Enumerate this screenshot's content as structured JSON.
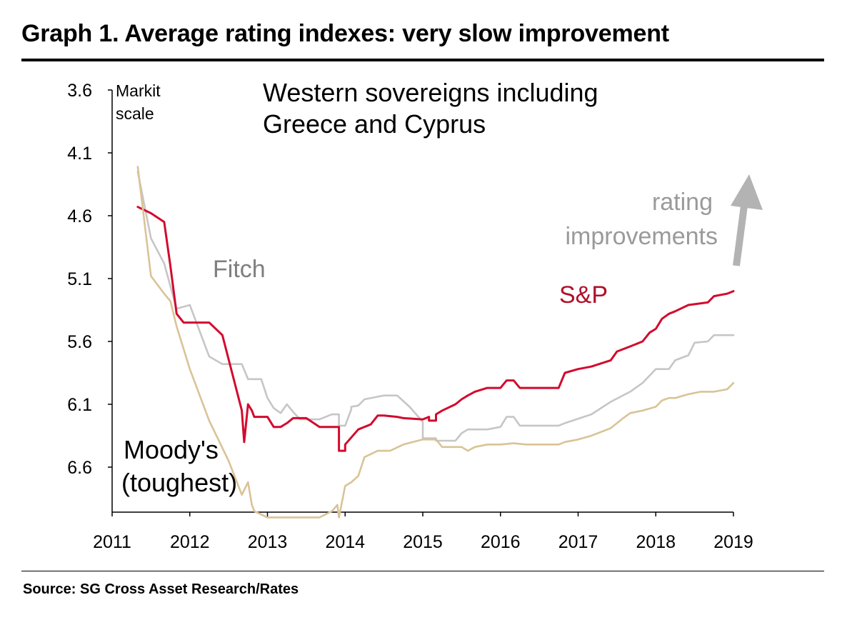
{
  "title": "Graph 1. Average rating indexes: very slow improvement",
  "source": "Source: SG Cross Asset Research/Rates",
  "chart_data": {
    "type": "line",
    "subtitle_lines": [
      "Western sovereigns including",
      "Greece and Cyprus"
    ],
    "ylabel_lines": [
      "Markit",
      "scale"
    ],
    "xlabel": "",
    "xlim": [
      2011,
      2019
    ],
    "ylim": [
      3.6,
      6.95
    ],
    "y_inverted": true,
    "x_ticks": [
      2011,
      2012,
      2013,
      2014,
      2015,
      2016,
      2017,
      2018,
      2019
    ],
    "y_ticks": [
      3.6,
      4.1,
      4.6,
      5.1,
      5.6,
      6.1,
      6.6
    ],
    "y_tick_labels": [
      "3.6",
      "4.1",
      "4.6",
      "5.1",
      "5.6",
      "6.1",
      "6.6"
    ],
    "annotations": {
      "fitch_label": "Fitch",
      "sp_label": "S&P",
      "moodys_lines": [
        "Moody's",
        "(toughest)"
      ],
      "arrow_text_lines": [
        "rating",
        "improvements"
      ]
    },
    "colors": {
      "fitch": "#c6c6c6",
      "sp": "#d20a2e",
      "moodys": "#d9c396",
      "arrow": "#b3b3b3",
      "fitch_label": "#7f7f7f",
      "sp_label": "#b0102a"
    },
    "series": [
      {
        "name": "Fitch",
        "color": "#c6c6c6",
        "points": [
          [
            2011.33,
            4.25
          ],
          [
            2011.5,
            4.78
          ],
          [
            2011.67,
            4.98
          ],
          [
            2011.83,
            5.34
          ],
          [
            2012.0,
            5.31
          ],
          [
            2012.25,
            5.72
          ],
          [
            2012.42,
            5.78
          ],
          [
            2012.67,
            5.78
          ],
          [
            2012.75,
            5.9
          ],
          [
            2012.92,
            5.9
          ],
          [
            2013.0,
            6.05
          ],
          [
            2013.08,
            6.13
          ],
          [
            2013.17,
            6.17
          ],
          [
            2013.25,
            6.1
          ],
          [
            2013.33,
            6.16
          ],
          [
            2013.42,
            6.22
          ],
          [
            2013.67,
            6.22
          ],
          [
            2013.83,
            6.18
          ],
          [
            2013.92,
            6.18
          ],
          [
            2013.92,
            6.27
          ],
          [
            2014.0,
            6.27
          ],
          [
            2014.08,
            6.14
          ],
          [
            2014.08,
            6.12
          ],
          [
            2014.17,
            6.11
          ],
          [
            2014.25,
            6.06
          ],
          [
            2014.42,
            6.04
          ],
          [
            2014.5,
            6.03
          ],
          [
            2014.67,
            6.03
          ],
          [
            2014.83,
            6.12
          ],
          [
            2015.0,
            6.24
          ],
          [
            2015.0,
            6.37
          ],
          [
            2015.17,
            6.37
          ],
          [
            2015.17,
            6.39
          ],
          [
            2015.42,
            6.39
          ],
          [
            2015.5,
            6.33
          ],
          [
            2015.58,
            6.3
          ],
          [
            2015.83,
            6.3
          ],
          [
            2016.0,
            6.28
          ],
          [
            2016.08,
            6.2
          ],
          [
            2016.17,
            6.2
          ],
          [
            2016.25,
            6.27
          ],
          [
            2016.75,
            6.27
          ],
          [
            2016.83,
            6.25
          ],
          [
            2017.17,
            6.18
          ],
          [
            2017.42,
            6.08
          ],
          [
            2017.67,
            6.0
          ],
          [
            2017.83,
            5.93
          ],
          [
            2018.0,
            5.82
          ],
          [
            2018.17,
            5.82
          ],
          [
            2018.25,
            5.75
          ],
          [
            2018.42,
            5.71
          ],
          [
            2018.5,
            5.61
          ],
          [
            2018.67,
            5.6
          ],
          [
            2018.75,
            5.55
          ],
          [
            2019.0,
            5.55
          ]
        ]
      },
      {
        "name": "S&P",
        "color": "#d20a2e",
        "points": [
          [
            2011.33,
            4.53
          ],
          [
            2011.5,
            4.58
          ],
          [
            2011.67,
            4.65
          ],
          [
            2011.75,
            5.0
          ],
          [
            2011.83,
            5.38
          ],
          [
            2011.92,
            5.45
          ],
          [
            2012.25,
            5.45
          ],
          [
            2012.42,
            5.55
          ],
          [
            2012.67,
            6.15
          ],
          [
            2012.7,
            6.4
          ],
          [
            2012.75,
            6.1
          ],
          [
            2012.8,
            6.15
          ],
          [
            2012.83,
            6.2
          ],
          [
            2013.0,
            6.2
          ],
          [
            2013.08,
            6.28
          ],
          [
            2013.17,
            6.28
          ],
          [
            2013.25,
            6.25
          ],
          [
            2013.33,
            6.21
          ],
          [
            2013.5,
            6.21
          ],
          [
            2013.67,
            6.28
          ],
          [
            2013.83,
            6.28
          ],
          [
            2013.92,
            6.28
          ],
          [
            2013.92,
            6.47
          ],
          [
            2014.0,
            6.47
          ],
          [
            2014.0,
            6.42
          ],
          [
            2014.17,
            6.3
          ],
          [
            2014.33,
            6.26
          ],
          [
            2014.42,
            6.19
          ],
          [
            2014.5,
            6.19
          ],
          [
            2014.67,
            6.2
          ],
          [
            2014.75,
            6.21
          ],
          [
            2015.0,
            6.22
          ],
          [
            2015.08,
            6.2
          ],
          [
            2015.08,
            6.23
          ],
          [
            2015.17,
            6.23
          ],
          [
            2015.17,
            6.18
          ],
          [
            2015.25,
            6.15
          ],
          [
            2015.42,
            6.1
          ],
          [
            2015.5,
            6.06
          ],
          [
            2015.58,
            6.03
          ],
          [
            2015.67,
            6.0
          ],
          [
            2015.83,
            5.97
          ],
          [
            2016.0,
            5.97
          ],
          [
            2016.08,
            5.91
          ],
          [
            2016.17,
            5.91
          ],
          [
            2016.25,
            5.97
          ],
          [
            2016.75,
            5.97
          ],
          [
            2016.83,
            5.85
          ],
          [
            2017.0,
            5.82
          ],
          [
            2017.17,
            5.8
          ],
          [
            2017.42,
            5.75
          ],
          [
            2017.5,
            5.68
          ],
          [
            2017.67,
            5.64
          ],
          [
            2017.83,
            5.6
          ],
          [
            2017.92,
            5.53
          ],
          [
            2018.0,
            5.5
          ],
          [
            2018.08,
            5.42
          ],
          [
            2018.17,
            5.38
          ],
          [
            2018.25,
            5.36
          ],
          [
            2018.42,
            5.31
          ],
          [
            2018.67,
            5.29
          ],
          [
            2018.75,
            5.24
          ],
          [
            2018.92,
            5.22
          ],
          [
            2019.0,
            5.2
          ]
        ]
      },
      {
        "name": "Moody's",
        "color": "#d9c396",
        "points": [
          [
            2011.33,
            4.21
          ],
          [
            2011.5,
            5.08
          ],
          [
            2011.67,
            5.22
          ],
          [
            2011.75,
            5.28
          ],
          [
            2011.83,
            5.48
          ],
          [
            2012.0,
            5.82
          ],
          [
            2012.25,
            6.23
          ],
          [
            2012.5,
            6.55
          ],
          [
            2012.67,
            6.82
          ],
          [
            2012.75,
            6.72
          ],
          [
            2012.8,
            6.9
          ],
          [
            2012.83,
            6.95
          ],
          [
            2013.0,
            7.0
          ],
          [
            2013.33,
            7.0
          ],
          [
            2013.67,
            7.0
          ],
          [
            2013.83,
            6.95
          ],
          [
            2013.9,
            6.9
          ],
          [
            2013.92,
            7.0
          ],
          [
            2014.0,
            6.75
          ],
          [
            2014.08,
            6.72
          ],
          [
            2014.17,
            6.67
          ],
          [
            2014.25,
            6.52
          ],
          [
            2014.42,
            6.47
          ],
          [
            2014.58,
            6.47
          ],
          [
            2014.75,
            6.42
          ],
          [
            2015.0,
            6.38
          ],
          [
            2015.17,
            6.38
          ],
          [
            2015.25,
            6.44
          ],
          [
            2015.5,
            6.44
          ],
          [
            2015.58,
            6.47
          ],
          [
            2015.67,
            6.44
          ],
          [
            2015.83,
            6.42
          ],
          [
            2016.0,
            6.42
          ],
          [
            2016.17,
            6.41
          ],
          [
            2016.33,
            6.42
          ],
          [
            2016.75,
            6.42
          ],
          [
            2016.83,
            6.4
          ],
          [
            2017.0,
            6.38
          ],
          [
            2017.17,
            6.35
          ],
          [
            2017.42,
            6.29
          ],
          [
            2017.58,
            6.21
          ],
          [
            2017.67,
            6.17
          ],
          [
            2017.83,
            6.15
          ],
          [
            2018.0,
            6.12
          ],
          [
            2018.08,
            6.07
          ],
          [
            2018.17,
            6.05
          ],
          [
            2018.25,
            6.05
          ],
          [
            2018.42,
            6.02
          ],
          [
            2018.58,
            6.0
          ],
          [
            2018.67,
            6.0
          ],
          [
            2018.75,
            6.0
          ],
          [
            2018.92,
            5.98
          ],
          [
            2019.0,
            5.93
          ]
        ]
      }
    ]
  }
}
